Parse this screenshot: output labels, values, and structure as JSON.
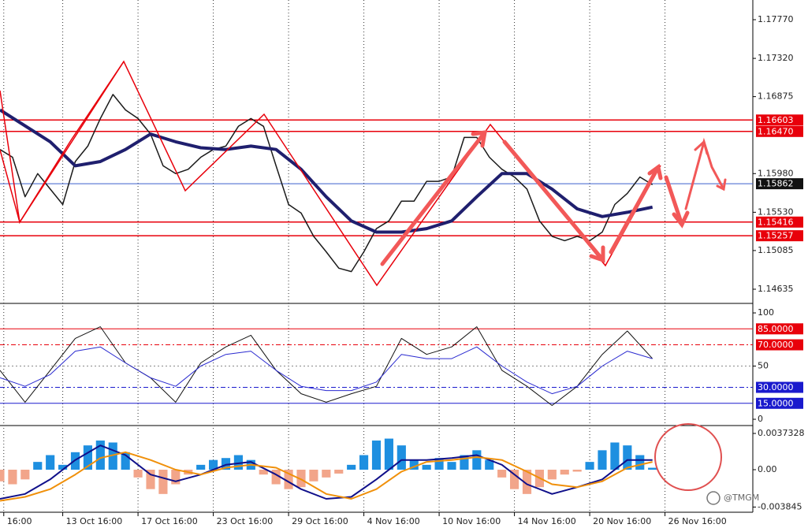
{
  "chart_data": [
    {
      "type": "line",
      "ylim": [
        1.1447,
        1.17999
      ],
      "xlim": [
        0,
        120
      ],
      "yticks": [
        {
          "value": 1.1777,
          "label": "1.17770"
        },
        {
          "value": 1.1732,
          "label": "1.17320"
        },
        1.16875,
        {
          "value": 1.1598,
          "label": "1.15980"
        },
        {
          "value": 1.1553,
          "label": "1.15530"
        },
        1.15085,
        1.14635
      ],
      "xticks": [
        {
          "value": 0.6,
          "label": "16:00"
        },
        {
          "value": 10,
          "label": "13 Oct 16:00"
        },
        {
          "value": 22,
          "label": "17 Oct 16:00"
        },
        {
          "value": 34,
          "label": "23 Oct 16:00"
        },
        {
          "value": 46,
          "label": "29 Oct 16:00"
        },
        {
          "value": 58,
          "label": "4 Nov 16:00"
        },
        {
          "value": 70,
          "label": "10 Nov 16:00"
        },
        {
          "value": 82,
          "label": "14 Nov 16:00"
        },
        {
          "value": 94,
          "label": "20 Nov 16:00"
        },
        {
          "value": 106,
          "label": "26 Nov 16:00"
        }
      ],
      "levels": [
        {
          "value": 1.16603,
          "color": "#e8000b"
        },
        {
          "value": 1.1647,
          "label": "1.16470",
          "color": "#e8000b"
        },
        {
          "value": 1.15862,
          "color": "#3a5fcd"
        },
        {
          "value": 1.15416,
          "color": "#e8000b"
        },
        {
          "value": 1.15257,
          "color": "#e8000b"
        }
      ],
      "series": [
        {
          "color": "#1a1a1a",
          "width": 1.5,
          "x": [
            0,
            2,
            4,
            6,
            8,
            10,
            12,
            14,
            16,
            18,
            20,
            22,
            24,
            26,
            28,
            30,
            32,
            34,
            36,
            38,
            40,
            42,
            44,
            46,
            48,
            50,
            52,
            54,
            56,
            58,
            60,
            62,
            64,
            66,
            68,
            70,
            72,
            74,
            76,
            78,
            80,
            82,
            84,
            86,
            88,
            90,
            92,
            94,
            96,
            98,
            100,
            102,
            104
          ],
          "values": [
            1.1626,
            1.1617,
            1.1571,
            1.1598,
            1.158,
            1.1562,
            1.1612,
            1.163,
            1.1662,
            1.169,
            1.1672,
            1.1662,
            1.1644,
            1.1607,
            1.1598,
            1.1603,
            1.1617,
            1.1626,
            1.163,
            1.1653,
            1.1662,
            1.1653,
            1.1607,
            1.1562,
            1.1552,
            1.1525,
            1.1507,
            1.1488,
            1.1484,
            1.1507,
            1.1534,
            1.1543,
            1.1566,
            1.1566,
            1.1589,
            1.1589,
            1.1594,
            1.164,
            1.164,
            1.1617,
            1.1603,
            1.1594,
            1.158,
            1.1543,
            1.1525,
            1.152,
            1.1525,
            1.152,
            1.153,
            1.1562,
            1.1575,
            1.1594,
            1.1585
          ]
        },
        {
          "color": "#1f1f6e",
          "width": 4,
          "x": [
            0,
            8,
            12,
            16,
            20,
            24,
            28,
            32,
            36,
            40,
            44,
            48,
            52,
            56,
            60,
            64,
            68,
            72,
            76,
            80,
            84,
            88,
            92,
            96,
            100,
            104
          ],
          "values": [
            1.1672,
            1.1635,
            1.1607,
            1.1612,
            1.1626,
            1.1644,
            1.1635,
            1.1628,
            1.1626,
            1.163,
            1.1626,
            1.1603,
            1.1571,
            1.1543,
            1.153,
            1.153,
            1.1534,
            1.1543,
            1.1571,
            1.1598,
            1.1598,
            1.158,
            1.1557,
            1.1548,
            1.1553,
            1.1559
          ]
        }
      ]
    },
    {
      "type": "line",
      "ylim": [
        -5.9,
        106.7
      ],
      "xlim": [
        0,
        120
      ],
      "yticks": [
        100,
        50,
        0
      ],
      "levels": [
        {
          "value": 85,
          "label": "85.0000",
          "color": "#e8000b",
          "dash": "none"
        },
        {
          "value": 70,
          "label": "70.0000",
          "color": "#e8000b",
          "dash": "6 3 2 3"
        },
        {
          "value": 50,
          "color": "#888888",
          "dash": "2 3"
        },
        {
          "value": 30,
          "label": "30.0000",
          "color": "#1a1acd",
          "dash": "6 3 2 3"
        },
        {
          "value": 15,
          "label": "15.0000",
          "color": "#1a1acd",
          "dash": "none"
        }
      ],
      "series": [
        {
          "color": "#111111",
          "width": 1,
          "x": [
            0,
            4,
            8,
            12,
            16,
            20,
            24,
            28,
            32,
            36,
            40,
            44,
            48,
            52,
            56,
            60,
            64,
            68,
            72,
            76,
            80,
            84,
            88,
            92,
            96,
            100,
            104
          ],
          "values": [
            46,
            16,
            46,
            76,
            87,
            53,
            39,
            16,
            53,
            68,
            79,
            46,
            24,
            16,
            24,
            31,
            76,
            61,
            68,
            87,
            46,
            31,
            13,
            31,
            61,
            83,
            57
          ]
        },
        {
          "color": "#2a2ad0",
          "width": 1,
          "x": [
            0,
            4,
            8,
            12,
            16,
            20,
            24,
            28,
            32,
            36,
            40,
            44,
            48,
            52,
            56,
            60,
            64,
            68,
            72,
            76,
            80,
            84,
            88,
            92,
            96,
            100,
            104
          ],
          "values": [
            39,
            31,
            42,
            64,
            68,
            53,
            39,
            31,
            50,
            61,
            64,
            46,
            31,
            27,
            27,
            35,
            61,
            57,
            57,
            68,
            50,
            35,
            24,
            31,
            50,
            64,
            57
          ]
        }
      ]
    },
    {
      "type": "line",
      "ylim": [
        -0.00438,
        0.0043
      ],
      "xlim": [
        0,
        120
      ],
      "yticks": [
        0.0037328,
        {
          "value": 0,
          "label": "0.00"
        },
        -0.003845
      ],
      "watermark": "@TMGM",
      "series": [
        {
          "kind": "bar",
          "color": "#1e8fe0",
          "negative_color": "#f2a58a",
          "x": [
            0,
            2,
            4,
            6,
            8,
            10,
            12,
            14,
            16,
            18,
            20,
            22,
            24,
            26,
            28,
            30,
            32,
            34,
            36,
            38,
            40,
            42,
            44,
            46,
            48,
            50,
            52,
            54,
            56,
            58,
            60,
            62,
            64,
            66,
            68,
            70,
            72,
            74,
            76,
            78,
            80,
            82,
            84,
            86,
            88,
            90,
            92,
            94,
            96,
            98,
            100,
            102,
            104
          ],
          "values": [
            -0.0012,
            -0.0015,
            -0.001,
            0.0008,
            0.0015,
            0.0005,
            0.0018,
            0.0025,
            0.003,
            0.0028,
            0.0018,
            -0.0008,
            -0.002,
            -0.0025,
            -0.0015,
            -0.0005,
            0.0005,
            0.001,
            0.0012,
            0.0015,
            0.001,
            -0.0005,
            -0.0015,
            -0.002,
            -0.0018,
            -0.0012,
            -0.0008,
            -0.0004,
            0.0005,
            0.0015,
            0.003,
            0.0032,
            0.0025,
            0.001,
            0.0005,
            0.0012,
            0.0008,
            0.0015,
            0.002,
            0.001,
            -0.0008,
            -0.002,
            -0.0025,
            -0.0018,
            -0.001,
            -0.0005,
            -0.0002,
            0.0008,
            0.002,
            0.0028,
            0.0025,
            0.0015,
            0.0002
          ]
        },
        {
          "color": "#10108a",
          "width": 2,
          "x": [
            0,
            4,
            8,
            12,
            16,
            20,
            24,
            28,
            32,
            36,
            40,
            44,
            48,
            52,
            56,
            60,
            64,
            68,
            72,
            76,
            80,
            84,
            88,
            92,
            96,
            100,
            104
          ],
          "values": [
            -0.003,
            -0.0025,
            -0.001,
            0.001,
            0.0025,
            0.0015,
            -0.0005,
            -0.0012,
            -0.0005,
            0.0005,
            0.0008,
            -0.0005,
            -0.002,
            -0.003,
            -0.0028,
            -0.001,
            0.001,
            0.001,
            0.0012,
            0.0015,
            0.0005,
            -0.0015,
            -0.0025,
            -0.0018,
            -0.001,
            0.001,
            0.001
          ]
        },
        {
          "color": "#f0900a",
          "width": 2,
          "x": [
            0,
            4,
            8,
            12,
            16,
            20,
            24,
            28,
            32,
            36,
            40,
            44,
            48,
            52,
            56,
            60,
            64,
            68,
            72,
            76,
            80,
            84,
            88,
            92,
            96,
            100,
            104
          ],
          "values": [
            -0.0032,
            -0.0028,
            -0.002,
            -0.0005,
            0.0012,
            0.0018,
            0.001,
            0,
            -0.0005,
            0.0002,
            0.0005,
            0.0002,
            -0.001,
            -0.0025,
            -0.003,
            -0.002,
            -0.0002,
            0.0008,
            0.001,
            0.0013,
            0.001,
            -0.0002,
            -0.0015,
            -0.0018,
            -0.0012,
            0.0002,
            0.0008
          ]
        }
      ]
    }
  ]
}
